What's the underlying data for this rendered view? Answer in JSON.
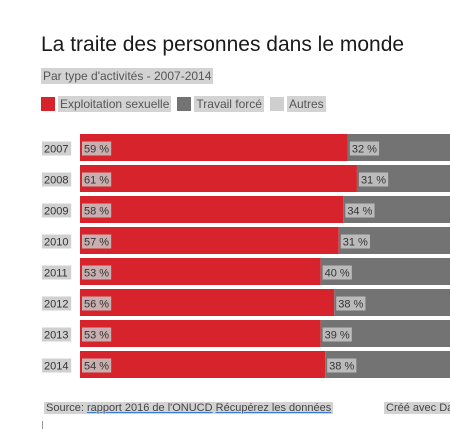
{
  "header": {
    "title": "La traite des personnes dans le monde",
    "subtitle": "Par type d'activités - 2007-2014"
  },
  "legend": [
    {
      "label": "Exploitation sexuelle",
      "color": "#d7232c"
    },
    {
      "label": "Travail forcé",
      "color": "#737373"
    },
    {
      "label": "Autres",
      "color": "#cfcfcf"
    }
  ],
  "chart_data": {
    "type": "bar",
    "orientation": "horizontal",
    "stacked": true,
    "categories": [
      "2007",
      "2008",
      "2009",
      "2010",
      "2011",
      "2012",
      "2013",
      "2014"
    ],
    "series": [
      {
        "name": "Exploitation sexuelle",
        "color": "#d7232c",
        "values": [
          59,
          61,
          58,
          57,
          53,
          56,
          53,
          54
        ],
        "labels": [
          "59 %",
          "61 %",
          "58 %",
          "57 %",
          "53 %",
          "56 %",
          "53 %",
          "54 %"
        ]
      },
      {
        "name": "Travail forcé",
        "color": "#737373",
        "values": [
          32,
          31,
          34,
          31,
          40,
          38,
          39,
          38
        ],
        "labels": [
          "32 %",
          "31 %",
          "34 %",
          "31 %",
          "40 %",
          "38 %",
          "39 %",
          "38 %"
        ]
      }
    ],
    "xlim": [
      0,
      100
    ],
    "grid": false
  },
  "footer": {
    "source_prefix": "Source: ",
    "source_link": "rapport 2016 de l'ONUCD",
    "download_link": "Récupérez les données",
    "credit": "Créé avec Da"
  }
}
